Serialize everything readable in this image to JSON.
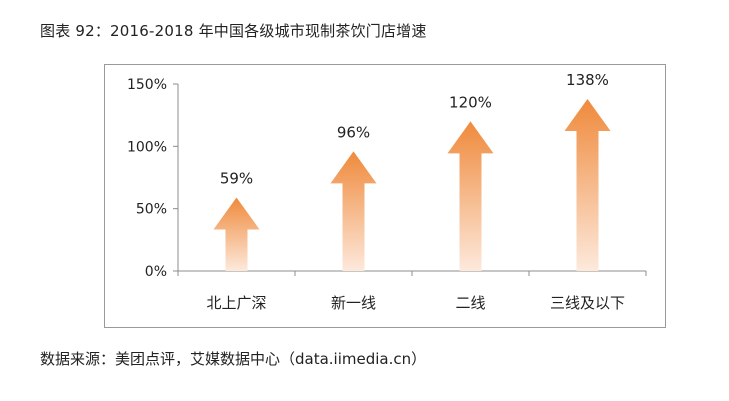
{
  "title": "图表 92：2016-2018 年中国各级城市现制茶饮门店增速",
  "source": "数据来源：美团点评，艾媒数据中心（data.iimedia.cn）",
  "colors": {
    "arrow_top": "#ef8a3c",
    "arrow_bottom": "#fde9dc",
    "axis": "#8c8c8c"
  },
  "chart_data": {
    "type": "bar",
    "categories": [
      "北上广深",
      "新一线",
      "二线",
      "三线及以下"
    ],
    "values": [
      59,
      96,
      120,
      138
    ],
    "value_labels": [
      "59%",
      "96%",
      "120%",
      "138%"
    ],
    "y_ticks": [
      0,
      50,
      100,
      150
    ],
    "y_tick_labels": [
      "0%",
      "50%",
      "100%",
      "150%"
    ],
    "ylim": [
      0,
      150
    ],
    "grid": false,
    "mark_style": "upward-arrow"
  }
}
